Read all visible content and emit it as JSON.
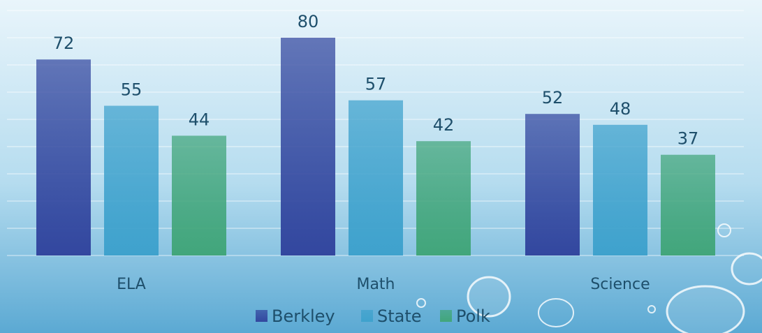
{
  "chart_data": {
    "type": "bar",
    "categories": [
      "ELA",
      "Math",
      "Science"
    ],
    "series": [
      {
        "name": "Berkley",
        "color": "#33479f",
        "values": [
          72,
          80,
          52
        ]
      },
      {
        "name": "State",
        "color": "#3fa2cd",
        "values": [
          55,
          57,
          48
        ]
      },
      {
        "name": "Polk",
        "color": "#42a67b",
        "values": [
          44,
          42,
          37
        ]
      }
    ],
    "ylim": [
      0,
      90
    ],
    "yticks": [
      0,
      10,
      20,
      30,
      40,
      50,
      60,
      70,
      80,
      90
    ],
    "grid": true,
    "legend": "bottom"
  }
}
